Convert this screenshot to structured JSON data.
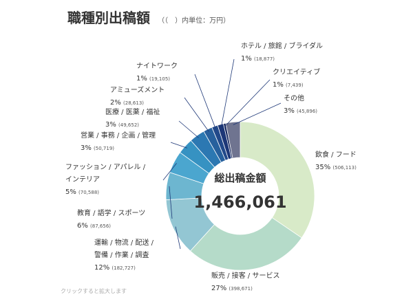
{
  "page_title": "職種別出稿額",
  "unit_note": "（（　）内単位：万円）",
  "footnote": "クリックすると拡大します",
  "chart_data": {
    "type": "pie",
    "title": "職種別出稿額",
    "center_label": "総出稿金額",
    "total": "1,466,061",
    "slices": [
      {
        "lines": [
          "飲食 / フード"
        ],
        "percent": "35%",
        "value": 506113,
        "value_label": "(506,113)",
        "color": "#d8eac8"
      },
      {
        "lines": [
          "販売 / 接客 / サービス"
        ],
        "percent": "27%",
        "value": 398671,
        "value_label": "(398,671)",
        "color": "#b5dbc9"
      },
      {
        "lines": [
          "運輸 / 物流 / 配送 /",
          "警備 / 作業 / 調査"
        ],
        "percent": "12%",
        "value": 182727,
        "value_label": "(182,727)",
        "color": "#93c6d3"
      },
      {
        "lines": [
          "教育 / 語学 / スポーツ"
        ],
        "percent": "6%",
        "value": 87656,
        "value_label": "(87,656)",
        "color": "#6db6d0"
      },
      {
        "lines": [
          "ファッション / アパレル /",
          "インテリア"
        ],
        "percent": "5%",
        "value": 70588,
        "value_label": "(70,588)",
        "color": "#4ba6cf"
      },
      {
        "lines": [
          "営業 / 事務 / 企画 / 管理"
        ],
        "percent": "3%",
        "value": 50719,
        "value_label": "(50,719)",
        "color": "#3692c2"
      },
      {
        "lines": [
          "医療 / 医薬 / 福祉"
        ],
        "percent": "3%",
        "value": 49652,
        "value_label": "(49,652)",
        "color": "#2c78b2"
      },
      {
        "lines": [
          "アミューズメント"
        ],
        "percent": "2%",
        "value": 28613,
        "value_label": "(28,613)",
        "color": "#27609d"
      },
      {
        "lines": [
          "ナイトワーク"
        ],
        "percent": "1%",
        "value": 19105,
        "value_label": "(19,105)",
        "color": "#22498a"
      },
      {
        "lines": [
          "ホテル / 旅館 / ブライダル"
        ],
        "percent": "1%",
        "value": 18877,
        "value_label": "(18,877)",
        "color": "#1d3777"
      },
      {
        "lines": [
          "クリエイティブ"
        ],
        "percent": "1%",
        "value": 7439,
        "value_label": "(7,439)",
        "color": "#14255c"
      },
      {
        "lines": [
          "その他"
        ],
        "percent": "3%",
        "value": 45896,
        "value_label": "(45,896)",
        "color": "#6f7490"
      }
    ]
  }
}
